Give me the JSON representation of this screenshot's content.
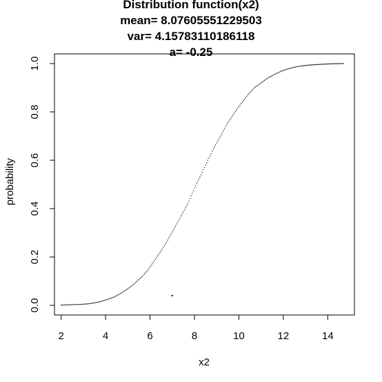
{
  "chart_data": {
    "type": "scatter",
    "title": "Distribution function(x2)",
    "subtitles": [
      "mean= 8.07605551229503",
      "var= 4.15783110186118",
      "a= -0.25"
    ],
    "xlabel": "x2",
    "ylabel": "probability",
    "xlim": [
      1.7,
      15.2
    ],
    "ylim": [
      -0.04,
      1.04
    ],
    "xticks": [
      "2",
      "4",
      "6",
      "8",
      "10",
      "12",
      "14"
    ],
    "yticks": [
      "0.0",
      "0.2",
      "0.4",
      "0.6",
      "0.8",
      "1.0"
    ],
    "grid": false,
    "legend": "none",
    "series": [
      {
        "color": "#000000",
        "points": [
          [
            2.0,
            0.001
          ],
          [
            2.3,
            0.002
          ],
          [
            2.6,
            0.003
          ],
          [
            2.9,
            0.004
          ],
          [
            3.2,
            0.006
          ],
          [
            3.5,
            0.01
          ],
          [
            3.8,
            0.016
          ],
          [
            4.1,
            0.025
          ],
          [
            4.4,
            0.035
          ],
          [
            4.7,
            0.05
          ],
          [
            5.0,
            0.068
          ],
          [
            5.3,
            0.09
          ],
          [
            5.6,
            0.115
          ],
          [
            5.9,
            0.145
          ],
          [
            6.2,
            0.185
          ],
          [
            6.5,
            0.225
          ],
          [
            6.8,
            0.27
          ],
          [
            7.1,
            0.32
          ],
          [
            7.4,
            0.37
          ],
          [
            7.7,
            0.42
          ],
          [
            8.0,
            0.485
          ],
          [
            8.3,
            0.54
          ],
          [
            8.6,
            0.6
          ],
          [
            8.9,
            0.655
          ],
          [
            9.2,
            0.705
          ],
          [
            9.5,
            0.755
          ],
          [
            9.8,
            0.795
          ],
          [
            10.1,
            0.835
          ],
          [
            10.4,
            0.87
          ],
          [
            10.7,
            0.9
          ],
          [
            11.0,
            0.92
          ],
          [
            11.3,
            0.94
          ],
          [
            11.6,
            0.955
          ],
          [
            11.9,
            0.968
          ],
          [
            12.2,
            0.978
          ],
          [
            12.5,
            0.985
          ],
          [
            12.8,
            0.99
          ],
          [
            13.2,
            0.994
          ],
          [
            13.7,
            0.997
          ],
          [
            14.2,
            0.999
          ],
          [
            14.7,
            1.0
          ],
          [
            7.0,
            0.04
          ]
        ]
      }
    ]
  }
}
